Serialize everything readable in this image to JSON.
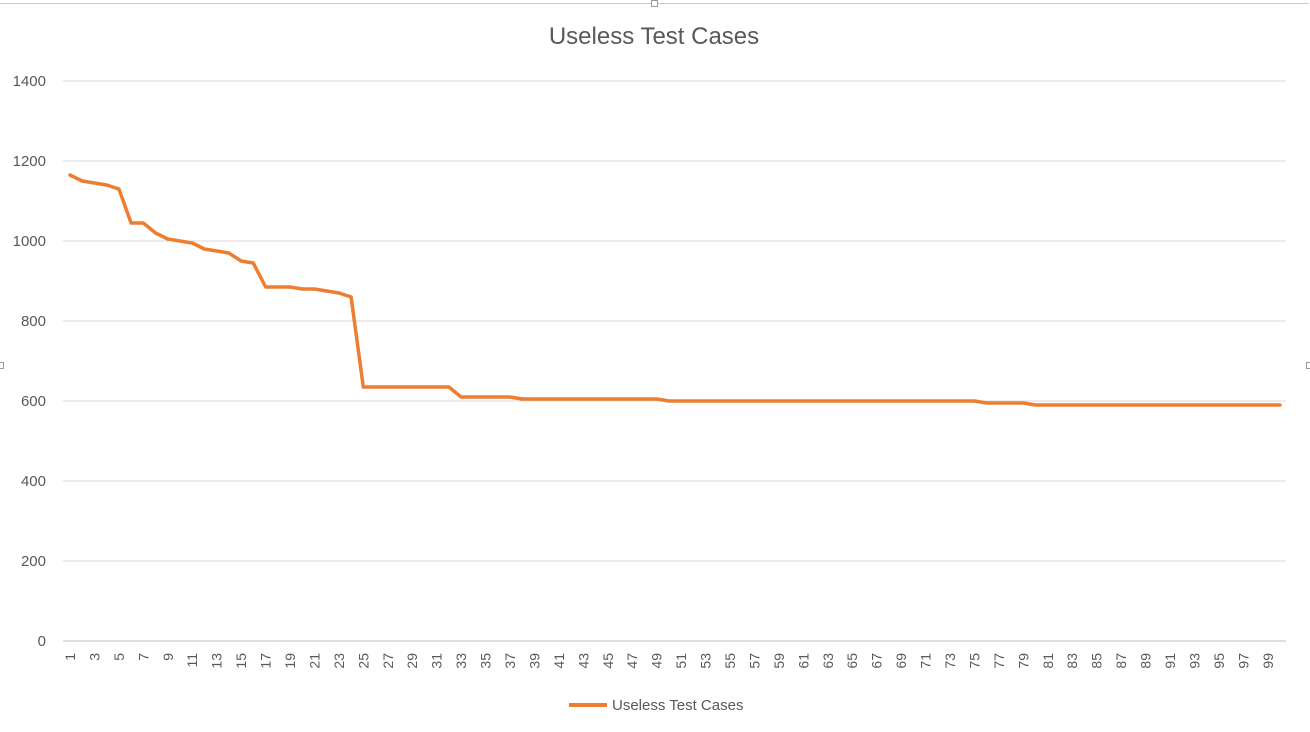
{
  "chart_data": {
    "type": "line",
    "title": "Useless Test Cases",
    "xlabel": "",
    "ylabel": "",
    "ylim": [
      0,
      1400
    ],
    "yticks": [
      0,
      200,
      400,
      600,
      800,
      1000,
      1200,
      1400
    ],
    "xlim": [
      1,
      100
    ],
    "xtick_labels": [
      "1",
      "3",
      "5",
      "7",
      "9",
      "11",
      "13",
      "15",
      "17",
      "19",
      "21",
      "23",
      "25",
      "27",
      "29",
      "31",
      "33",
      "35",
      "37",
      "39",
      "41",
      "43",
      "45",
      "47",
      "49",
      "51",
      "53",
      "55",
      "57",
      "59",
      "61",
      "63",
      "65",
      "67",
      "69",
      "71",
      "73",
      "75",
      "77",
      "79",
      "81",
      "83",
      "85",
      "87",
      "89",
      "91",
      "93",
      "95",
      "97",
      "99"
    ],
    "grid": true,
    "legend": "bottom",
    "color": "#ED7D31",
    "series": [
      {
        "name": "Useless Test Cases",
        "x": [
          1,
          2,
          3,
          4,
          5,
          6,
          7,
          8,
          9,
          10,
          11,
          12,
          13,
          14,
          15,
          16,
          17,
          18,
          19,
          20,
          21,
          22,
          23,
          24,
          25,
          26,
          27,
          28,
          29,
          30,
          31,
          32,
          33,
          34,
          35,
          36,
          37,
          38,
          39,
          40,
          41,
          42,
          43,
          44,
          45,
          46,
          47,
          48,
          49,
          50,
          51,
          52,
          53,
          54,
          55,
          56,
          57,
          58,
          59,
          60,
          61,
          62,
          63,
          64,
          65,
          66,
          67,
          68,
          69,
          70,
          71,
          72,
          73,
          74,
          75,
          76,
          77,
          78,
          79,
          80,
          81,
          82,
          83,
          84,
          85,
          86,
          87,
          88,
          89,
          90,
          91,
          92,
          93,
          94,
          95,
          96,
          97,
          98,
          99,
          100
        ],
        "values": [
          1165,
          1150,
          1145,
          1140,
          1130,
          1045,
          1045,
          1020,
          1005,
          1000,
          995,
          980,
          975,
          970,
          950,
          945,
          885,
          885,
          885,
          880,
          880,
          875,
          870,
          860,
          635,
          635,
          635,
          635,
          635,
          635,
          635,
          635,
          610,
          610,
          610,
          610,
          610,
          605,
          605,
          605,
          605,
          605,
          605,
          605,
          605,
          605,
          605,
          605,
          605,
          600,
          600,
          600,
          600,
          600,
          600,
          600,
          600,
          600,
          600,
          600,
          600,
          600,
          600,
          600,
          600,
          600,
          600,
          600,
          600,
          600,
          600,
          600,
          600,
          600,
          600,
          595,
          595,
          595,
          595,
          590,
          590,
          590,
          590,
          590,
          590,
          590,
          590,
          590,
          590,
          590,
          590,
          590,
          590,
          590,
          590,
          590,
          590,
          590,
          590,
          590
        ]
      }
    ]
  }
}
